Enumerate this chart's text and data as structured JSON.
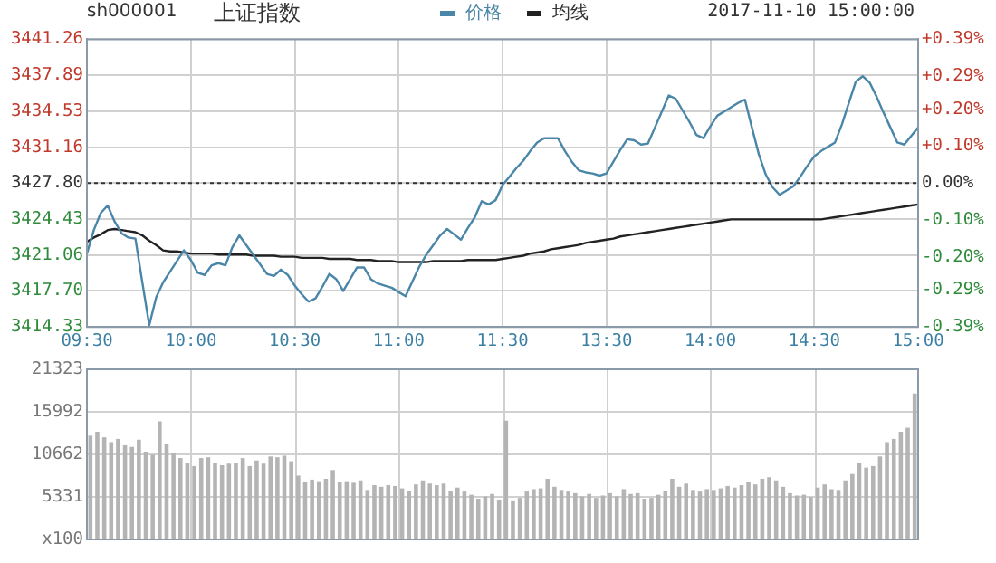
{
  "chart_data": [
    {
      "type": "line",
      "title": "上证指数",
      "annotations": [
        "sh000001",
        "2017-11-10 15:00:00"
      ],
      "legend": "top",
      "marker": "none",
      "grid": true,
      "categories": [
        "09:30",
        null,
        null,
        null,
        null,
        null,
        null,
        null,
        null,
        null,
        null,
        null,
        null,
        null,
        null,
        "10:00",
        null,
        null,
        null,
        null,
        null,
        null,
        null,
        null,
        null,
        null,
        null,
        null,
        null,
        null,
        "10:30",
        null,
        null,
        null,
        null,
        null,
        null,
        null,
        null,
        null,
        null,
        null,
        null,
        null,
        null,
        "11:00",
        null,
        null,
        null,
        null,
        null,
        null,
        null,
        null,
        null,
        null,
        null,
        null,
        null,
        null,
        "11:30",
        null,
        null,
        null,
        null,
        null,
        null,
        null,
        null,
        null,
        null,
        null,
        null,
        null,
        null,
        "13:30",
        null,
        null,
        null,
        null,
        null,
        null,
        null,
        null,
        null,
        null,
        null,
        null,
        null,
        null,
        "14:00",
        null,
        null,
        null,
        null,
        null,
        null,
        null,
        null,
        null,
        null,
        null,
        null,
        null,
        null,
        "14:30",
        null,
        null,
        null,
        null,
        null,
        null,
        null,
        null,
        null,
        null,
        null,
        null,
        null,
        null,
        "15:00"
      ],
      "ylim": [
        3414.33,
        3441.26
      ],
      "yticks": [
        3414.33,
        {
          "value": 3417.7,
          "label": "3417.70"
        },
        3421.06,
        3424.43,
        {
          "value": 3427.8,
          "label": "3427.80"
        },
        3431.16,
        3434.53,
        3437.89,
        3441.26
      ],
      "y2lim": [
        -0.39,
        0.39
      ],
      "y2ticks": [
        {
          "value": -0.39,
          "label": "-0.39%"
        },
        {
          "value": -0.29,
          "label": "-0.29%"
        },
        {
          "value": -0.2,
          "label": "-0.20%"
        },
        {
          "value": -0.1,
          "label": "-0.10%"
        },
        {
          "value": 0,
          "label": "0.00%"
        },
        {
          "value": 0.1,
          "label": "+0.10%"
        },
        {
          "value": 0.2,
          "label": "+0.20%"
        },
        {
          "value": 0.29,
          "label": "+0.29%"
        },
        {
          "value": 0.39,
          "label": "+0.39%"
        }
      ],
      "ref_lines": [
        {
          "axis": "y",
          "value": 3427.8,
          "color": "#333333",
          "line_style": "dotted"
        }
      ],
      "series": [
        {
          "name": "价格",
          "color": "#4a86a8",
          "values": [
            3421.2,
            3423.4,
            3425.0,
            3425.7,
            3424.2,
            3423.1,
            3422.7,
            3422.6,
            3418.5,
            3414.5,
            3417.1,
            3418.5,
            3419.5,
            3420.5,
            3421.5,
            3420.6,
            3419.4,
            3419.2,
            3420.1,
            3420.3,
            3420.1,
            3421.8,
            3422.9,
            3422.0,
            3421.1,
            3420.2,
            3419.3,
            3419.1,
            3419.7,
            3419.2,
            3418.2,
            3417.4,
            3416.7,
            3417.0,
            3418.1,
            3419.3,
            3418.8,
            3417.7,
            3418.8,
            3419.9,
            3419.9,
            3418.8,
            3418.4,
            3418.2,
            3418.0,
            3417.6,
            3417.2,
            3418.6,
            3420.0,
            3421.1,
            3422.0,
            3422.9,
            3423.5,
            3423.0,
            3422.5,
            3423.6,
            3424.6,
            3426.1,
            3425.8,
            3426.2,
            3427.6,
            3428.4,
            3429.2,
            3429.9,
            3430.8,
            3431.6,
            3432.0,
            3432.0,
            3432.0,
            3430.8,
            3429.8,
            3429.0,
            3428.8,
            3428.7,
            3428.5,
            3428.7,
            3429.8,
            3430.9,
            3431.9,
            3431.8,
            3431.4,
            3431.5,
            3433.0,
            3434.5,
            3436.0,
            3435.7,
            3434.6,
            3433.5,
            3432.3,
            3432.0,
            3433.1,
            3434.1,
            3434.5,
            3434.9,
            3435.3,
            3435.6,
            3433.0,
            3430.5,
            3428.6,
            3427.4,
            3426.7,
            3427.1,
            3427.5,
            3428.4,
            3429.4,
            3430.3,
            3430.8,
            3431.2,
            3431.6,
            3433.3,
            3435.3,
            3437.3,
            3437.8,
            3437.2,
            3435.9,
            3434.4,
            3433.0,
            3431.6,
            3431.4,
            3432.2,
            3433.0
          ]
        },
        {
          "name": "均线",
          "color": "#222222",
          "values": [
            3422.3,
            3422.7,
            3423.0,
            3423.4,
            3423.5,
            3423.4,
            3423.3,
            3423.2,
            3422.9,
            3422.4,
            3422.0,
            3421.5,
            3421.4,
            3421.4,
            3421.3,
            3421.2,
            3421.2,
            3421.2,
            3421.2,
            3421.1,
            3421.1,
            3421.1,
            3421.1,
            3421.1,
            3421.0,
            3421.0,
            3421.0,
            3421.0,
            3420.9,
            3420.9,
            3420.9,
            3420.8,
            3420.8,
            3420.8,
            3420.8,
            3420.7,
            3420.7,
            3420.7,
            3420.7,
            3420.6,
            3420.6,
            3420.6,
            3420.5,
            3420.5,
            3420.5,
            3420.4,
            3420.4,
            3420.4,
            3420.4,
            3420.4,
            3420.5,
            3420.5,
            3420.5,
            3420.5,
            3420.5,
            3420.6,
            3420.6,
            3420.6,
            3420.6,
            3420.6,
            3420.7,
            3420.8,
            3420.9,
            3421.0,
            3421.2,
            3421.3,
            3421.4,
            3421.6,
            3421.7,
            3421.8,
            3421.9,
            3422.0,
            3422.2,
            3422.3,
            3422.4,
            3422.5,
            3422.6,
            3422.8,
            3422.9,
            3423.0,
            3423.1,
            3423.2,
            3423.3,
            3423.4,
            3423.5,
            3423.6,
            3423.7,
            3423.8,
            3423.9,
            3424.0,
            3424.1,
            3424.2,
            3424.3,
            3424.4,
            3424.4,
            3424.4,
            3424.4,
            3424.4,
            3424.4,
            3424.4,
            3424.4,
            3424.4,
            3424.4,
            3424.4,
            3424.4,
            3424.4,
            3424.4,
            3424.5,
            3424.6,
            3424.7,
            3424.8,
            3424.9,
            3425.0,
            3425.1,
            3425.2,
            3425.3,
            3425.4,
            3425.5,
            3425.6,
            3425.7,
            3425.8
          ]
        }
      ]
    },
    {
      "type": "bar",
      "grid": true,
      "tick_labels": "y",
      "color": "#b4b4b4",
      "ylim": [
        0,
        21323
      ],
      "yticks": [
        {
          "value": 0,
          "label": "x100"
        },
        5331,
        10662,
        15992,
        21323
      ],
      "categories": [
        null,
        null,
        null,
        null,
        null,
        null,
        null,
        null,
        null,
        null,
        null,
        null,
        null,
        null,
        null,
        null,
        null,
        null,
        null,
        null,
        null,
        null,
        null,
        null,
        null,
        null,
        null,
        null,
        null,
        null,
        null,
        null,
        null,
        null,
        null,
        null,
        null,
        null,
        null,
        null,
        null,
        null,
        null,
        null,
        null,
        null,
        null,
        null,
        null,
        null,
        null,
        null,
        null,
        null,
        null,
        null,
        null,
        null,
        null,
        null,
        null,
        null,
        null,
        null,
        null,
        null,
        null,
        null,
        null,
        null,
        null,
        null,
        null,
        null,
        null,
        null,
        null,
        null,
        null,
        null,
        null,
        null,
        null,
        null,
        null,
        null,
        null,
        null,
        null,
        null,
        null,
        null,
        null,
        null,
        null,
        null,
        null,
        null,
        null,
        null,
        null,
        null,
        null,
        null,
        null,
        null,
        null,
        null,
        null,
        null,
        null,
        null,
        null,
        null,
        null,
        null,
        null,
        null,
        null,
        null
      ],
      "values": [
        13000,
        13500,
        12800,
        12200,
        12600,
        11800,
        11600,
        12500,
        11000,
        10600,
        14800,
        12000,
        10800,
        10200,
        9600,
        9200,
        10200,
        10300,
        9600,
        9300,
        9500,
        9600,
        10200,
        9200,
        9900,
        9500,
        10400,
        10300,
        10500,
        9800,
        8000,
        7200,
        7500,
        7300,
        7600,
        8700,
        7200,
        7300,
        7100,
        7400,
        6200,
        6800,
        6600,
        6800,
        6700,
        6400,
        6100,
        6900,
        7400,
        7000,
        6800,
        7000,
        6100,
        6500,
        6000,
        5600,
        5100,
        5400,
        5700,
        5000,
        14900,
        4900,
        5200,
        6000,
        6300,
        6400,
        7600,
        6600,
        6200,
        6000,
        5800,
        5400,
        5700,
        5200,
        5500,
        5800,
        5400,
        6300,
        5700,
        5800,
        5100,
        5200,
        5600,
        6100,
        7600,
        6600,
        7000,
        6200,
        6000,
        6300,
        6200,
        6400,
        6700,
        6500,
        6800,
        7200,
        6900,
        7600,
        7800,
        7400,
        6600,
        5800,
        5500,
        5600,
        5300,
        6500,
        6900,
        6300,
        6200,
        7400,
        8200,
        9600,
        9000,
        9200,
        10400,
        12200,
        12600,
        13500,
        14000,
        18300
      ]
    }
  ]
}
